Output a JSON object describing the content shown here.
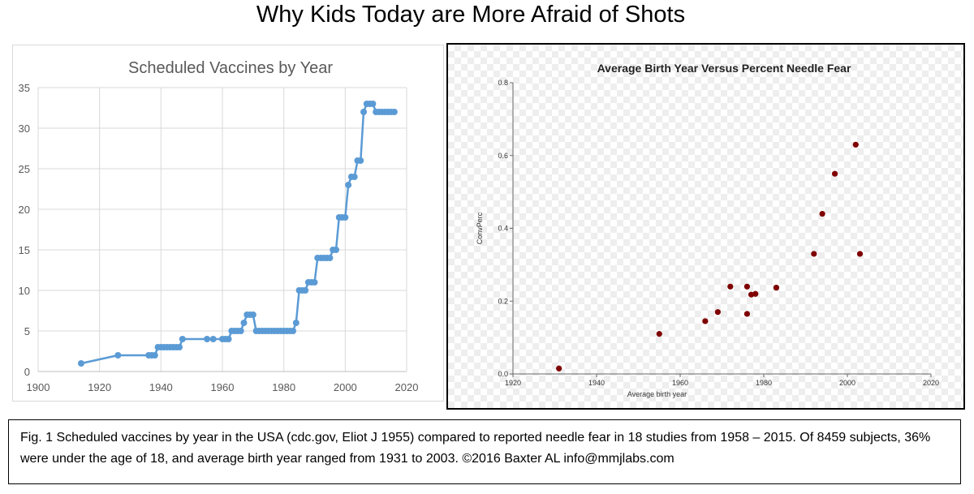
{
  "title": "Why Kids Today are More Afraid of Shots",
  "caption": "Fig. 1 Scheduled vaccines by year in the USA (cdc.gov, Eliot J 1955) compared to reported needle fear in 18 studies from 1958 – 2015. Of 8459 subjects, 36% were under the age of 18, and average birth year ranged from 1931 to 2003.  ©2016 Baxter AL    info@mmjlabs.com",
  "colors": {
    "line_series": "#5b9bd5",
    "scatter_points": "#7f0000"
  },
  "chart_data": [
    {
      "type": "line",
      "title": "Scheduled Vaccines by Year",
      "xlabel": "",
      "ylabel": "",
      "xlim": [
        1900,
        2020
      ],
      "ylim": [
        0,
        35
      ],
      "xticks": [
        1900,
        1920,
        1940,
        1960,
        1980,
        2000,
        2020
      ],
      "yticks": [
        0,
        5,
        10,
        15,
        20,
        25,
        30,
        35
      ],
      "grid": true,
      "markers": true,
      "series": [
        {
          "x": [
            1914,
            1926,
            1936,
            1937,
            1938,
            1939,
            1940,
            1941,
            1942,
            1943,
            1944,
            1945,
            1946,
            1947,
            1955,
            1957,
            1960,
            1961,
            1962,
            1963,
            1964,
            1965,
            1966,
            1967,
            1968,
            1969,
            1970,
            1971,
            1972,
            1973,
            1974,
            1975,
            1976,
            1977,
            1978,
            1979,
            1980,
            1981,
            1982,
            1983,
            1984,
            1985,
            1986,
            1987,
            1988,
            1989,
            1990,
            1991,
            1992,
            1993,
            1994,
            1995,
            1996,
            1997,
            1998,
            1999,
            2000,
            2001,
            2002,
            2003,
            2004,
            2005,
            2006,
            2007,
            2008,
            2009,
            2010,
            2011,
            2012,
            2013,
            2014,
            2015,
            2016
          ],
          "y": [
            1,
            2,
            2,
            2,
            2,
            3,
            3,
            3,
            3,
            3,
            3,
            3,
            3,
            4,
            4,
            4,
            4,
            4,
            4,
            5,
            5,
            5,
            5,
            6,
            7,
            7,
            7,
            5,
            5,
            5,
            5,
            5,
            5,
            5,
            5,
            5,
            5,
            5,
            5,
            5,
            6,
            10,
            10,
            10,
            11,
            11,
            11,
            14,
            14,
            14,
            14,
            14,
            15,
            15,
            19,
            19,
            19,
            23,
            24,
            24,
            26,
            26,
            32,
            33,
            33,
            33,
            32,
            32,
            32,
            32,
            32,
            32,
            32
          ]
        }
      ]
    },
    {
      "type": "scatter",
      "title": "Average Birth Year Versus Percent Needle Fear",
      "xlabel": "Average birth year",
      "ylabel": "ConvPerc",
      "xlim": [
        1920,
        2020
      ],
      "ylim": [
        0.0,
        0.8
      ],
      "xticks": [
        1920,
        1940,
        1960,
        1980,
        2000,
        2020
      ],
      "yticks": [
        "0.0",
        "0.2",
        "0.4",
        "0.6",
        "0.8"
      ],
      "grid": false,
      "series": [
        {
          "x": [
            1931,
            1955,
            1966,
            1969,
            1972,
            1976,
            1976,
            1977,
            1978,
            1983,
            1992,
            1994,
            1997,
            2002,
            2003
          ],
          "y": [
            0.015,
            0.11,
            0.145,
            0.17,
            0.24,
            0.24,
            0.165,
            0.218,
            0.22,
            0.237,
            0.33,
            0.44,
            0.55,
            0.63,
            0.33
          ]
        }
      ]
    }
  ]
}
